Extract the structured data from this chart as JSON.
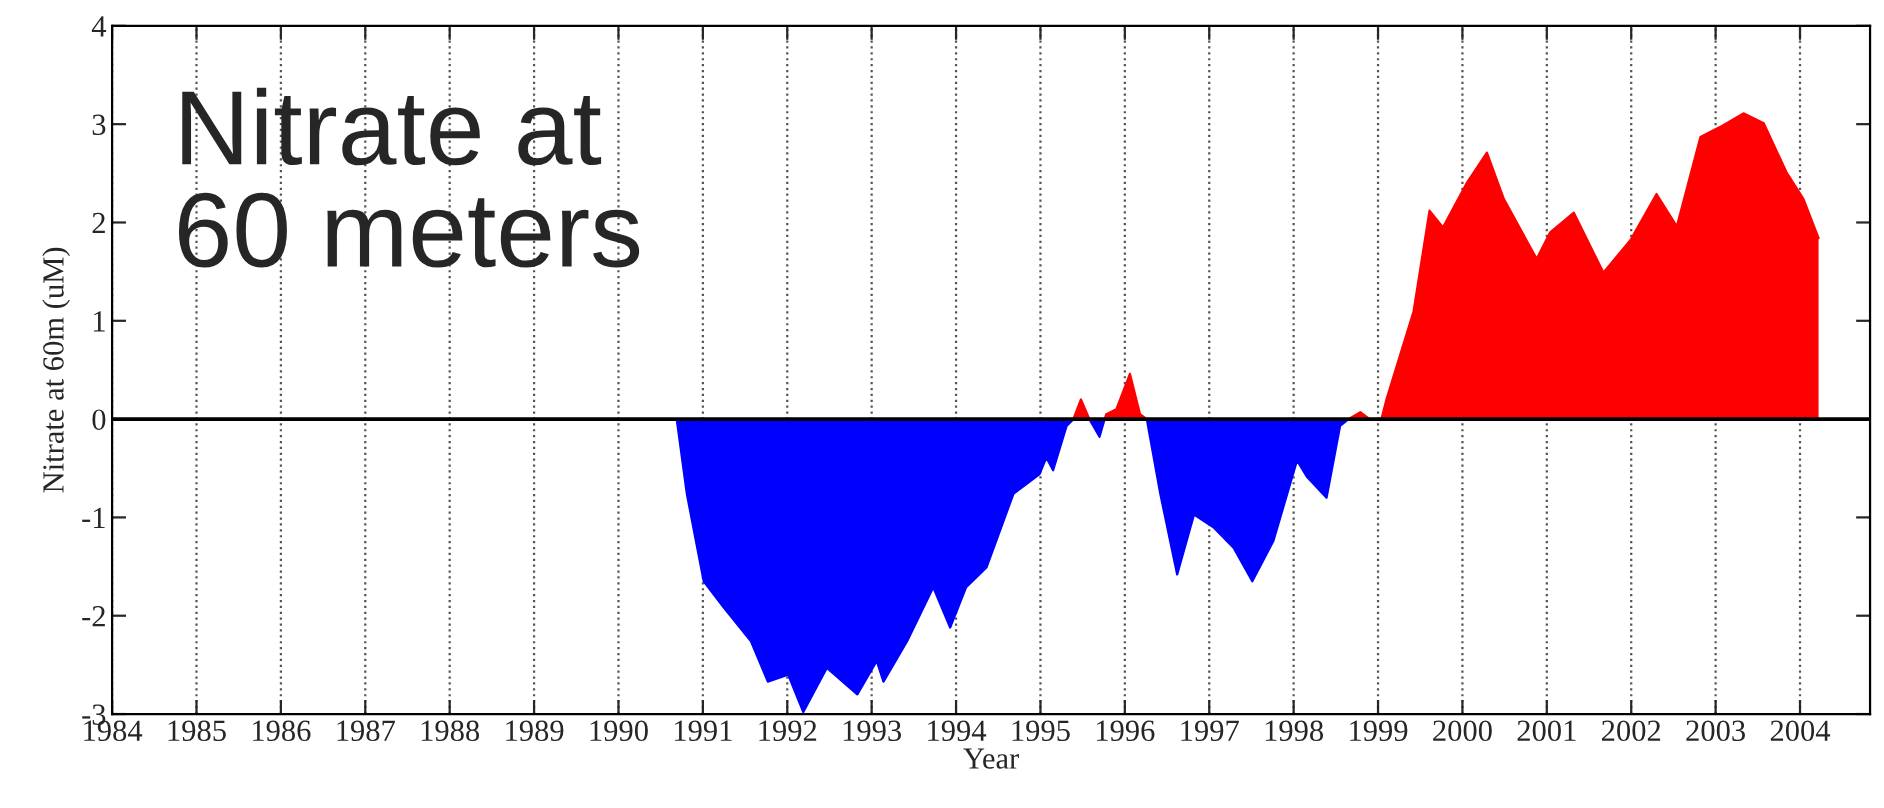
{
  "chart_data": {
    "type": "area",
    "title": "Nitrate at\n60 meters",
    "xlabel": "Year",
    "ylabel": "Nitrate at 60m (uM)",
    "x": [
      1990.69,
      1990.81,
      1991.01,
      1991.25,
      1991.57,
      1991.77,
      1992.01,
      1992.19,
      1992.47,
      1992.83,
      1993.06,
      1993.14,
      1993.42,
      1993.73,
      1993.93,
      1994.12,
      1994.36,
      1994.68,
      1994.99,
      1995.07,
      1995.15,
      1995.31,
      1995.39,
      1995.48,
      1995.58,
      1995.7,
      1995.76,
      1995.78,
      1995.9,
      1996.06,
      1996.18,
      1996.26,
      1996.42,
      1996.62,
      1996.82,
      1997.05,
      1997.29,
      1997.51,
      1997.76,
      1998.04,
      1998.16,
      1998.39,
      1998.55,
      1998.65,
      1998.79,
      1998.9,
      1998.99,
      1999.04,
      1999.1,
      1999.42,
      1999.61,
      1999.77,
      2000.05,
      2000.29,
      2000.49,
      2000.88,
      2001.04,
      2001.32,
      2001.67,
      2001.99,
      2002.3,
      2002.54,
      2002.82,
      2003.05,
      2003.33,
      2003.57,
      2003.84,
      2004.04,
      2004.22
    ],
    "series": [
      {
        "color": "#ff0000",
        "values": [
          null,
          null,
          null,
          null,
          null,
          null,
          null,
          null,
          null,
          null,
          null,
          null,
          null,
          null,
          null,
          null,
          null,
          null,
          null,
          null,
          null,
          null,
          0,
          0.2,
          0,
          null,
          0,
          0.05,
          0.1,
          0.46,
          0.05,
          0,
          null,
          null,
          null,
          null,
          null,
          null,
          null,
          null,
          null,
          null,
          null,
          0,
          0.07,
          0,
          null,
          0,
          0.2,
          1.09,
          2.12,
          1.95,
          2.4,
          2.71,
          2.24,
          1.63,
          1.9,
          2.1,
          1.49,
          1.82,
          2.29,
          1.96,
          2.87,
          2.97,
          3.11,
          3.01,
          2.51,
          2.24,
          1.84
        ]
      },
      {
        "color": "#0000ff",
        "values": [
          0,
          -0.76,
          -1.65,
          -1.92,
          -2.26,
          -2.67,
          -2.6,
          -2.98,
          -2.53,
          -2.8,
          -2.46,
          -2.67,
          -2.26,
          -1.71,
          -2.12,
          -1.71,
          -1.51,
          -0.76,
          -0.56,
          -0.39,
          -0.52,
          -0.07,
          0,
          null,
          0,
          -0.18,
          0,
          null,
          null,
          null,
          null,
          0,
          -0.76,
          -1.58,
          -0.97,
          -1.1,
          -1.31,
          -1.65,
          -1.24,
          -0.42,
          -0.59,
          -0.8,
          -0.07,
          0,
          null,
          null,
          null,
          null,
          null,
          null,
          null,
          null,
          null,
          null,
          null,
          null,
          null,
          null,
          null,
          null,
          null,
          null,
          null,
          null,
          null,
          null,
          null,
          null,
          null
        ]
      }
    ],
    "xlim": [
      1984,
      2004.83
    ],
    "xticks": [
      1984,
      1985,
      1986,
      1987,
      1988,
      1989,
      1990,
      1991,
      1992,
      1993,
      1994,
      1995,
      1996,
      1997,
      1998,
      1999,
      2000,
      2001,
      2002,
      2003,
      2004
    ],
    "ylim": [
      -3,
      4
    ],
    "yticks": [
      -3,
      -2,
      -1,
      0,
      1,
      2,
      3,
      4
    ],
    "grid": "x",
    "legend": false,
    "ref_lines": [
      {
        "axis": "y",
        "value": 0,
        "color": "#000000",
        "line_style": "solid"
      }
    ]
  }
}
